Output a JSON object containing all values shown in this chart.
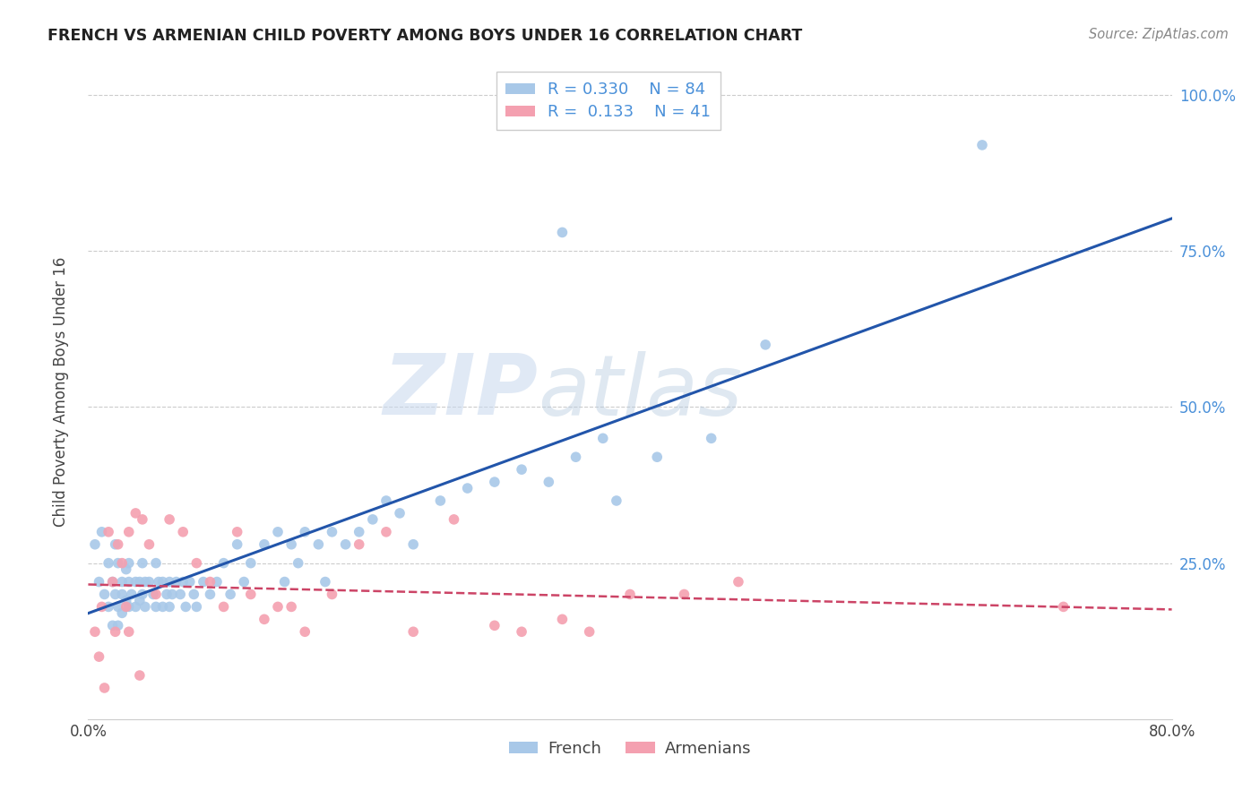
{
  "title": "FRENCH VS ARMENIAN CHILD POVERTY AMONG BOYS UNDER 16 CORRELATION CHART",
  "source": "Source: ZipAtlas.com",
  "ylabel": "Child Poverty Among Boys Under 16",
  "watermark_zip": "ZIP",
  "watermark_atlas": "atlas",
  "french_color": "#a8c8e8",
  "armenian_color": "#f4a0b0",
  "french_line_color": "#2255aa",
  "armenian_line_color": "#cc4466",
  "background_color": "#ffffff",
  "grid_color": "#cccccc",
  "right_tick_color": "#4a90d9",
  "title_color": "#222222",
  "source_color": "#888888",
  "xlim": [
    0.0,
    0.8
  ],
  "ylim": [
    0.0,
    1.05
  ],
  "xticks": [
    0.0,
    0.8
  ],
  "xtick_labels": [
    "0.0%",
    "80.0%"
  ],
  "yticks": [
    0.0,
    0.25,
    0.5,
    0.75,
    1.0
  ],
  "ytick_labels_right": [
    "",
    "25.0%",
    "50.0%",
    "75.0%",
    "100.0%"
  ],
  "legend_r1": "R = 0.330",
  "legend_n1": "N = 84",
  "legend_r2": "R =  0.133",
  "legend_n2": "N = 41",
  "bottom_legend_french": "French",
  "bottom_legend_armenian": "Armenians",
  "french_x": [
    0.005,
    0.008,
    0.01,
    0.012,
    0.015,
    0.015,
    0.018,
    0.018,
    0.02,
    0.02,
    0.022,
    0.022,
    0.022,
    0.025,
    0.025,
    0.025,
    0.028,
    0.028,
    0.03,
    0.03,
    0.03,
    0.032,
    0.035,
    0.035,
    0.038,
    0.038,
    0.04,
    0.04,
    0.042,
    0.042,
    0.045,
    0.048,
    0.05,
    0.05,
    0.052,
    0.055,
    0.055,
    0.058,
    0.06,
    0.06,
    0.062,
    0.065,
    0.068,
    0.07,
    0.072,
    0.075,
    0.078,
    0.08,
    0.085,
    0.09,
    0.095,
    0.1,
    0.105,
    0.11,
    0.115,
    0.12,
    0.13,
    0.14,
    0.145,
    0.15,
    0.155,
    0.16,
    0.17,
    0.175,
    0.18,
    0.19,
    0.2,
    0.21,
    0.22,
    0.23,
    0.24,
    0.26,
    0.28,
    0.3,
    0.32,
    0.34,
    0.36,
    0.38,
    0.39,
    0.42,
    0.35,
    0.46,
    0.5,
    0.66
  ],
  "french_y": [
    0.28,
    0.22,
    0.3,
    0.2,
    0.25,
    0.18,
    0.22,
    0.15,
    0.28,
    0.2,
    0.25,
    0.18,
    0.15,
    0.22,
    0.2,
    0.17,
    0.24,
    0.19,
    0.25,
    0.22,
    0.18,
    0.2,
    0.22,
    0.18,
    0.22,
    0.19,
    0.25,
    0.2,
    0.22,
    0.18,
    0.22,
    0.2,
    0.25,
    0.18,
    0.22,
    0.22,
    0.18,
    0.2,
    0.22,
    0.18,
    0.2,
    0.22,
    0.2,
    0.22,
    0.18,
    0.22,
    0.2,
    0.18,
    0.22,
    0.2,
    0.22,
    0.25,
    0.2,
    0.28,
    0.22,
    0.25,
    0.28,
    0.3,
    0.22,
    0.28,
    0.25,
    0.3,
    0.28,
    0.22,
    0.3,
    0.28,
    0.3,
    0.32,
    0.35,
    0.33,
    0.28,
    0.35,
    0.37,
    0.38,
    0.4,
    0.38,
    0.42,
    0.45,
    0.35,
    0.42,
    0.78,
    0.45,
    0.6,
    0.92
  ],
  "armenian_x": [
    0.005,
    0.008,
    0.01,
    0.012,
    0.015,
    0.018,
    0.02,
    0.022,
    0.025,
    0.028,
    0.03,
    0.03,
    0.035,
    0.038,
    0.04,
    0.045,
    0.05,
    0.06,
    0.07,
    0.08,
    0.09,
    0.1,
    0.11,
    0.12,
    0.13,
    0.14,
    0.15,
    0.16,
    0.18,
    0.2,
    0.22,
    0.24,
    0.27,
    0.3,
    0.32,
    0.35,
    0.37,
    0.4,
    0.44,
    0.48,
    0.72
  ],
  "armenian_y": [
    0.14,
    0.1,
    0.18,
    0.05,
    0.3,
    0.22,
    0.14,
    0.28,
    0.25,
    0.18,
    0.3,
    0.14,
    0.33,
    0.07,
    0.32,
    0.28,
    0.2,
    0.32,
    0.3,
    0.25,
    0.22,
    0.18,
    0.3,
    0.2,
    0.16,
    0.18,
    0.18,
    0.14,
    0.2,
    0.28,
    0.3,
    0.14,
    0.32,
    0.15,
    0.14,
    0.16,
    0.14,
    0.2,
    0.2,
    0.22,
    0.18
  ]
}
